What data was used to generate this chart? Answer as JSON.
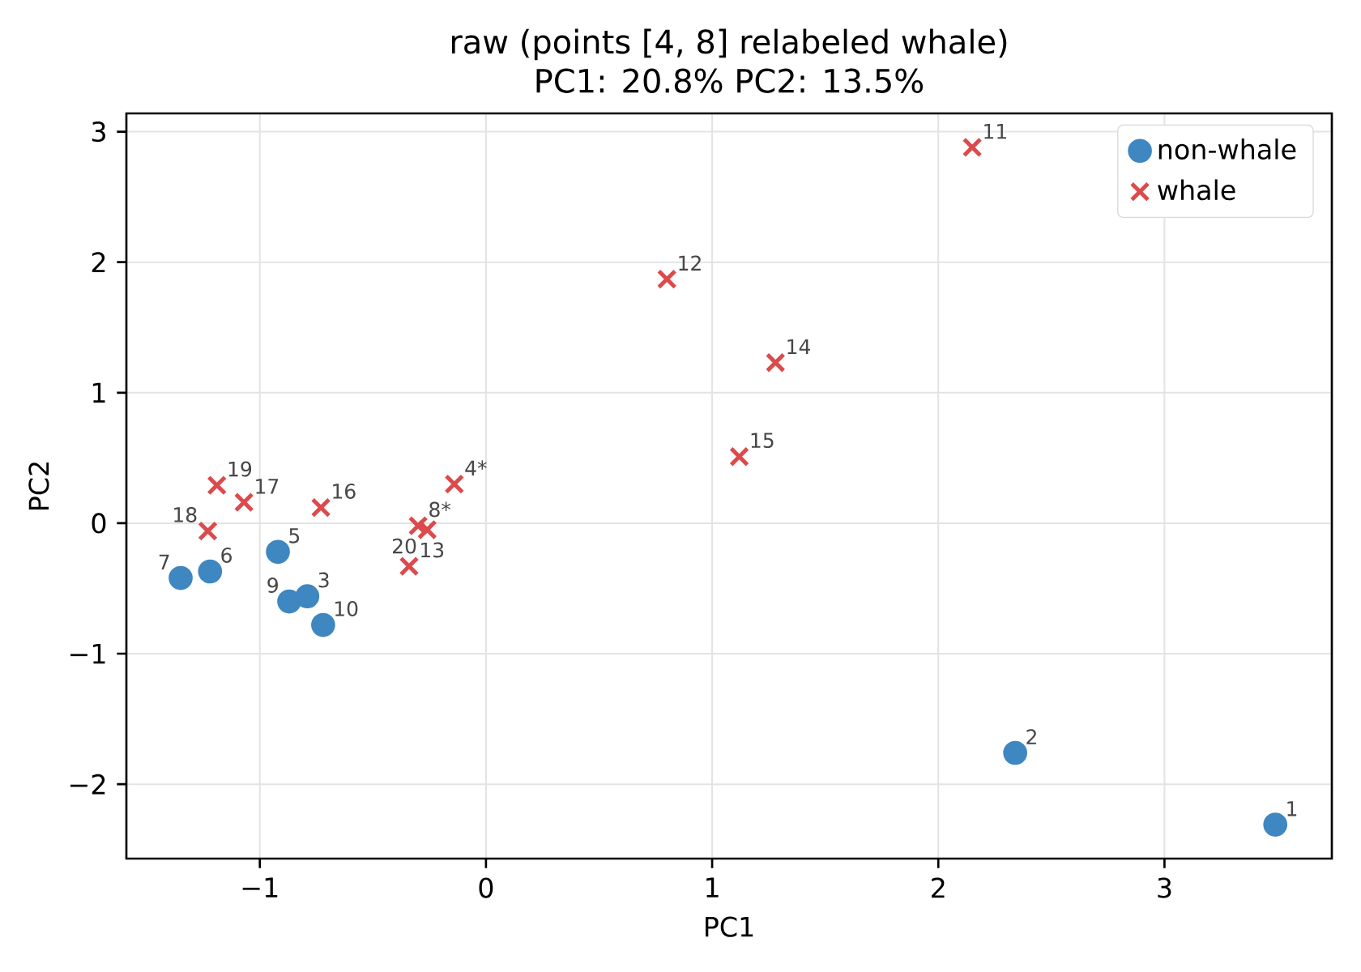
{
  "chart_data": {
    "type": "scatter",
    "title": "raw (points [4, 8] relabeled whale)",
    "subtitle": "PC1: 20.8%   PC2: 13.5%",
    "xlabel": "PC1",
    "ylabel": "PC2",
    "xlim": [
      -1.59,
      3.74
    ],
    "ylim": [
      -2.57,
      3.14
    ],
    "xticks": [
      {
        "value": -1,
        "label": "−1"
      },
      0,
      1,
      2,
      3
    ],
    "yticks": [
      {
        "value": -2,
        "label": "−2"
      },
      {
        "value": -1,
        "label": "−1"
      },
      0,
      1,
      2,
      3
    ],
    "grid": true,
    "legend": "top right",
    "series": [
      {
        "name": "non-whale",
        "color": "#3f87c0",
        "marker": "circle",
        "x": [
          3.49,
          2.34,
          -0.79,
          -0.92,
          -1.22,
          -1.35,
          -0.87,
          -0.72
        ],
        "values": [
          -2.31,
          -1.76,
          -0.56,
          -0.22,
          -0.37,
          -0.42,
          -0.6,
          -0.78
        ]
      },
      {
        "name": "whale",
        "color": "#dd4a4b",
        "marker": "cross",
        "x": [
          -0.14,
          -0.3,
          2.15,
          0.8,
          -0.34,
          1.28,
          1.12,
          -0.73,
          -1.07,
          -1.23,
          -1.19,
          -0.26
        ],
        "values": [
          0.3,
          -0.02,
          2.88,
          1.87,
          -0.33,
          1.23,
          0.51,
          0.12,
          0.16,
          -0.06,
          0.29,
          -0.05
        ]
      }
    ],
    "annotations": [
      {
        "text": "1",
        "x": 3.49,
        "y": -2.31
      },
      {
        "text": "2",
        "x": 2.34,
        "y": -1.76
      },
      {
        "text": "3",
        "x": -0.79,
        "y": -0.56
      },
      {
        "text": "4*",
        "x": -0.14,
        "y": 0.3
      },
      {
        "text": "5",
        "x": -0.92,
        "y": -0.22
      },
      {
        "text": "6",
        "x": -1.22,
        "y": -0.37
      },
      {
        "text": "7",
        "x": -1.35,
        "y": -0.42
      },
      {
        "text": "8*",
        "x": -0.3,
        "y": -0.02
      },
      {
        "text": "9",
        "x": -0.87,
        "y": -0.6
      },
      {
        "text": "10",
        "x": -0.72,
        "y": -0.78
      },
      {
        "text": "11",
        "x": 2.15,
        "y": 2.88
      },
      {
        "text": "12",
        "x": 0.8,
        "y": 1.87
      },
      {
        "text": "13",
        "x": -0.34,
        "y": -0.33
      },
      {
        "text": "14",
        "x": 1.28,
        "y": 1.23
      },
      {
        "text": "15",
        "x": 1.12,
        "y": 0.51
      },
      {
        "text": "16",
        "x": -0.73,
        "y": 0.12
      },
      {
        "text": "17",
        "x": -1.07,
        "y": 0.16
      },
      {
        "text": "18",
        "x": -1.23,
        "y": -0.06
      },
      {
        "text": "19",
        "x": -1.19,
        "y": 0.29
      },
      {
        "text": "20",
        "x": -0.26,
        "y": -0.05
      }
    ]
  }
}
